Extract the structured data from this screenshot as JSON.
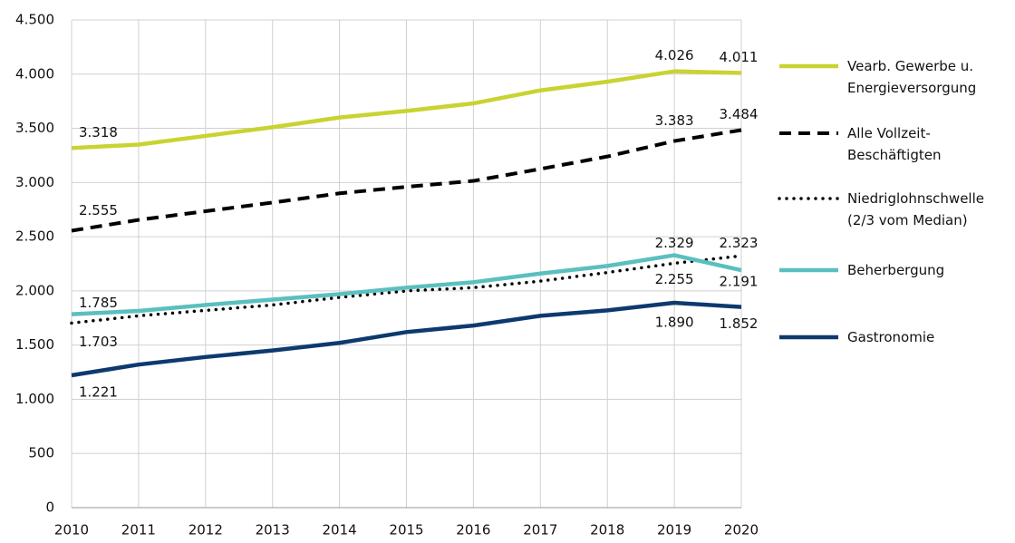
{
  "chart_data": {
    "type": "line",
    "x": [
      2010,
      2011,
      2012,
      2013,
      2014,
      2015,
      2016,
      2017,
      2018,
      2019,
      2020
    ],
    "xlim": [
      2010,
      2020
    ],
    "xticks": [
      2010,
      2011,
      2012,
      2013,
      2014,
      2015,
      2016,
      2017,
      2018,
      2019,
      2020
    ],
    "ylim": [
      0,
      4500
    ],
    "yticks": [
      0,
      500,
      {
        "value": 1000,
        "label": "1.000"
      },
      {
        "value": 1500,
        "label": "1.500"
      },
      {
        "value": 2000,
        "label": "2.000"
      },
      {
        "value": 2500,
        "label": "2.500"
      },
      {
        "value": 3000,
        "label": "3.000"
      },
      {
        "value": 3500,
        "label": "3.500"
      },
      {
        "value": 4000,
        "label": "4.000"
      },
      {
        "value": 4500,
        "label": "4.500"
      }
    ],
    "grid": true,
    "legend": "right",
    "series": [
      {
        "name": "Vearb. Gewerbe u. Energieversorgung",
        "color": "#c9d331",
        "line_style": "solid",
        "values": [
          3318,
          3350,
          3430,
          3510,
          3600,
          3660,
          3730,
          3850,
          3930,
          4026,
          4011
        ],
        "value_labels": [
          "3.318",
          null,
          null,
          null,
          null,
          null,
          null,
          null,
          null,
          "4.026",
          "4.011"
        ]
      },
      {
        "name": "Alle Vollzeit-Beschäftigten",
        "color": "#000000",
        "line_style": "dashed",
        "values": [
          2555,
          2655,
          2735,
          2815,
          2900,
          2960,
          3015,
          3125,
          3240,
          3383,
          3484
        ],
        "value_labels": [
          "2.555",
          null,
          null,
          null,
          null,
          null,
          null,
          null,
          null,
          "3.383",
          "3.484"
        ]
      },
      {
        "name": "Niedriglohnschwelle (2/3 vom Median)",
        "color": "#000000",
        "line_style": "dotted",
        "values": [
          1703,
          1770,
          1820,
          1870,
          1940,
          2000,
          2030,
          2090,
          2170,
          2255,
          2323
        ],
        "value_labels": [
          "1.703",
          null,
          null,
          null,
          null,
          null,
          null,
          null,
          null,
          "2.255",
          "2.323"
        ]
      },
      {
        "name": "Beherbergung",
        "color": "#5bbfbf",
        "line_style": "solid",
        "values": [
          1785,
          1815,
          1870,
          1920,
          1970,
          2030,
          2080,
          2160,
          2230,
          2329,
          2191
        ],
        "value_labels": [
          "1.785",
          null,
          null,
          null,
          null,
          null,
          null,
          null,
          null,
          "2.329",
          "2.191"
        ]
      },
      {
        "name": "Gastronomie",
        "color": "#0d3a6e",
        "line_style": "solid",
        "values": [
          1221,
          1320,
          1390,
          1450,
          1520,
          1620,
          1680,
          1770,
          1820,
          1890,
          1852
        ],
        "value_labels": [
          "1.221",
          null,
          null,
          null,
          null,
          null,
          null,
          null,
          null,
          "1.890",
          "1.852"
        ]
      }
    ]
  }
}
